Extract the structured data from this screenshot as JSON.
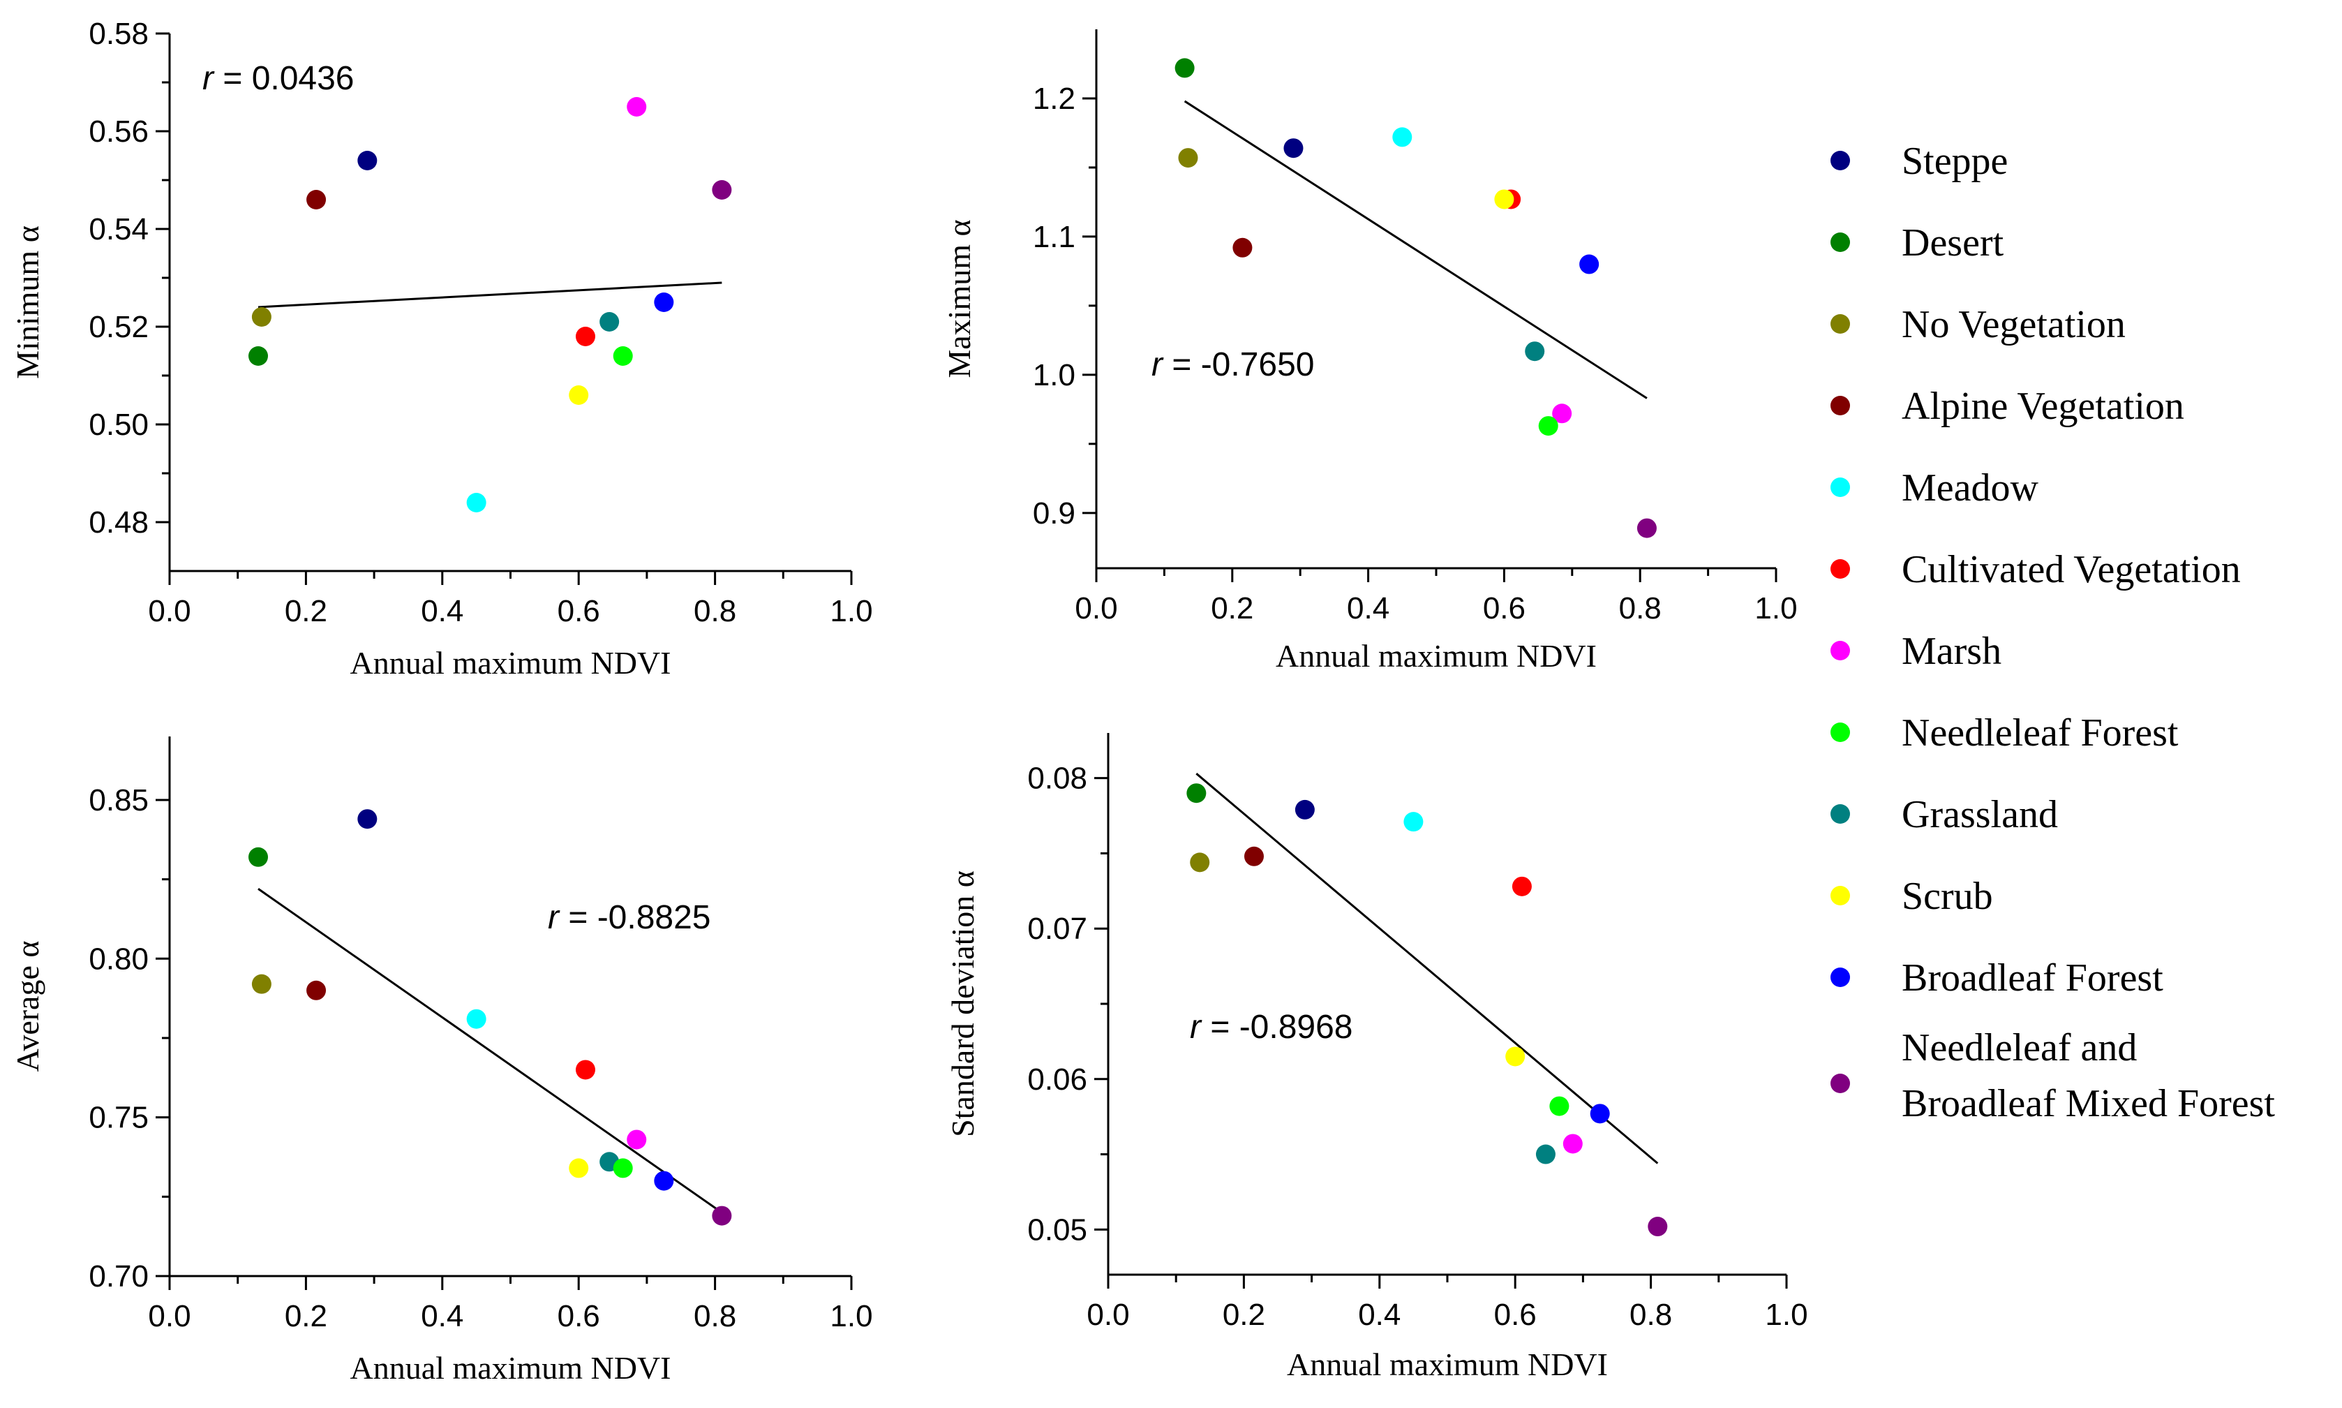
{
  "colors": {
    "Steppe": "#000080",
    "Desert": "#008000",
    "No Vegetation": "#808000",
    "Alpine Vegetation": "#800000",
    "Meadow": "#00ffff",
    "Cultivated Vegetation": "#ff0000",
    "Marsh": "#ff00ff",
    "Needleleaf Forest": "#00ff00",
    "Grassland": "#008080",
    "Scrub": "#ffff00",
    "Broadleaf Forest": "#0000ff",
    "Needleleaf and Broadleaf Mixed Forest": "#800080"
  },
  "legend": {
    "items": [
      {
        "key": "Steppe",
        "lines": [
          "Steppe"
        ]
      },
      {
        "key": "Desert",
        "lines": [
          "Desert"
        ]
      },
      {
        "key": "No Vegetation",
        "lines": [
          "No Vegetation"
        ]
      },
      {
        "key": "Alpine Vegetation",
        "lines": [
          "Alpine Vegetation"
        ]
      },
      {
        "key": "Meadow",
        "lines": [
          "Meadow"
        ]
      },
      {
        "key": "Cultivated Vegetation",
        "lines": [
          "Cultivated Vegetation"
        ]
      },
      {
        "key": "Marsh",
        "lines": [
          "Marsh"
        ]
      },
      {
        "key": "Needleleaf Forest",
        "lines": [
          "Needleleaf Forest"
        ]
      },
      {
        "key": "Grassland",
        "lines": [
          "Grassland"
        ]
      },
      {
        "key": "Scrub",
        "lines": [
          "Scrub"
        ]
      },
      {
        "key": "Broadleaf Forest",
        "lines": [
          "Broadleaf Forest"
        ]
      },
      {
        "key": "Needleleaf and Broadleaf Mixed Forest",
        "lines": [
          "Needleleaf and",
          "Broadleaf Mixed Forest"
        ]
      }
    ]
  },
  "chart_data": [
    {
      "type": "scatter",
      "xlabel": "Annual maximum NDVI",
      "ylabel": "Minimum α",
      "xlim": [
        0,
        1.0
      ],
      "ylim": [
        0.47,
        0.58
      ],
      "xticks": [
        0.0,
        0.2,
        0.4,
        0.6,
        0.8,
        1.0
      ],
      "yticks": [
        0.48,
        0.5,
        0.52,
        0.54,
        0.56,
        0.58
      ],
      "ytick_decimals": 2,
      "r_prefix": "r",
      "r_value": " = 0.0436",
      "points": [
        {
          "class": "Steppe",
          "x": 0.29,
          "y": 0.554
        },
        {
          "class": "Desert",
          "x": 0.13,
          "y": 0.514
        },
        {
          "class": "No Vegetation",
          "x": 0.135,
          "y": 0.522
        },
        {
          "class": "Alpine Vegetation",
          "x": 0.215,
          "y": 0.546
        },
        {
          "class": "Meadow",
          "x": 0.45,
          "y": 0.484
        },
        {
          "class": "Cultivated Vegetation",
          "x": 0.61,
          "y": 0.518
        },
        {
          "class": "Marsh",
          "x": 0.685,
          "y": 0.565
        },
        {
          "class": "Needleleaf Forest",
          "x": 0.665,
          "y": 0.514
        },
        {
          "class": "Grassland",
          "x": 0.645,
          "y": 0.521
        },
        {
          "class": "Scrub",
          "x": 0.6,
          "y": 0.506
        },
        {
          "class": "Broadleaf Forest",
          "x": 0.725,
          "y": 0.525
        },
        {
          "class": "Needleleaf and Broadleaf Mixed Forest",
          "x": 0.81,
          "y": 0.548
        }
      ],
      "fit": {
        "x": [
          0.13,
          0.81
        ],
        "y": [
          0.524,
          0.529
        ]
      }
    },
    {
      "type": "scatter",
      "xlabel": "Annual maximum NDVI",
      "ylabel": "Maximum α",
      "xlim": [
        0,
        1.0
      ],
      "ylim": [
        0.86,
        1.25
      ],
      "xticks": [
        0.0,
        0.2,
        0.4,
        0.6,
        0.8,
        1.0
      ],
      "yticks": [
        0.9,
        1.0,
        1.1,
        1.2
      ],
      "ytick_decimals": 1,
      "r_prefix": "r",
      "r_value": " = -0.7650",
      "points": [
        {
          "class": "Steppe",
          "x": 0.29,
          "y": 1.164
        },
        {
          "class": "Desert",
          "x": 0.13,
          "y": 1.222
        },
        {
          "class": "No Vegetation",
          "x": 0.135,
          "y": 1.157
        },
        {
          "class": "Alpine Vegetation",
          "x": 0.215,
          "y": 1.092
        },
        {
          "class": "Meadow",
          "x": 0.45,
          "y": 1.172
        },
        {
          "class": "Cultivated Vegetation",
          "x": 0.61,
          "y": 1.127
        },
        {
          "class": "Scrub",
          "x": 0.6,
          "y": 1.127
        },
        {
          "class": "Broadleaf Forest",
          "x": 0.725,
          "y": 1.08
        },
        {
          "class": "Grassland",
          "x": 0.645,
          "y": 1.017
        },
        {
          "class": "Marsh",
          "x": 0.685,
          "y": 0.972
        },
        {
          "class": "Needleleaf Forest",
          "x": 0.665,
          "y": 0.963
        },
        {
          "class": "Needleleaf and Broadleaf Mixed Forest",
          "x": 0.81,
          "y": 0.889
        }
      ],
      "fit": {
        "x": [
          0.13,
          0.81
        ],
        "y": [
          1.198,
          0.983
        ]
      }
    },
    {
      "type": "scatter",
      "xlabel": "Annual maximum NDVI",
      "ylabel": "Average α",
      "xlim": [
        0,
        1.0
      ],
      "ylim": [
        0.7,
        0.87
      ],
      "xticks": [
        0.0,
        0.2,
        0.4,
        0.6,
        0.8,
        1.0
      ],
      "yticks": [
        0.7,
        0.75,
        0.8,
        0.85
      ],
      "ytick_decimals": 2,
      "r_prefix": "r",
      "r_value": " = -0.8825",
      "points": [
        {
          "class": "Steppe",
          "x": 0.29,
          "y": 0.844
        },
        {
          "class": "Desert",
          "x": 0.13,
          "y": 0.832
        },
        {
          "class": "No Vegetation",
          "x": 0.135,
          "y": 0.792
        },
        {
          "class": "Alpine Vegetation",
          "x": 0.215,
          "y": 0.79
        },
        {
          "class": "Meadow",
          "x": 0.45,
          "y": 0.781
        },
        {
          "class": "Cultivated Vegetation",
          "x": 0.61,
          "y": 0.765
        },
        {
          "class": "Marsh",
          "x": 0.685,
          "y": 0.743
        },
        {
          "class": "Grassland",
          "x": 0.645,
          "y": 0.736
        },
        {
          "class": "Needleleaf Forest",
          "x": 0.665,
          "y": 0.734
        },
        {
          "class": "Scrub",
          "x": 0.6,
          "y": 0.734
        },
        {
          "class": "Broadleaf Forest",
          "x": 0.725,
          "y": 0.73
        },
        {
          "class": "Needleleaf and Broadleaf Mixed Forest",
          "x": 0.81,
          "y": 0.719
        }
      ],
      "fit": {
        "x": [
          0.13,
          0.81
        ],
        "y": [
          0.822,
          0.72
        ]
      }
    },
    {
      "type": "scatter",
      "xlabel": "Annual maximum NDVI",
      "ylabel": "Standard deviation α",
      "xlim": [
        0,
        1.0
      ],
      "ylim": [
        0.047,
        0.083
      ],
      "xticks": [
        0.0,
        0.2,
        0.4,
        0.6,
        0.8,
        1.0
      ],
      "yticks": [
        0.05,
        0.06,
        0.07,
        0.08
      ],
      "ytick_decimals": 2,
      "r_prefix": "r",
      "r_value": " = -0.8968",
      "points": [
        {
          "class": "Steppe",
          "x": 0.29,
          "y": 0.0779
        },
        {
          "class": "Desert",
          "x": 0.13,
          "y": 0.079
        },
        {
          "class": "No Vegetation",
          "x": 0.135,
          "y": 0.0744
        },
        {
          "class": "Alpine Vegetation",
          "x": 0.215,
          "y": 0.0748
        },
        {
          "class": "Meadow",
          "x": 0.45,
          "y": 0.0771
        },
        {
          "class": "Cultivated Vegetation",
          "x": 0.61,
          "y": 0.0728
        },
        {
          "class": "Scrub",
          "x": 0.6,
          "y": 0.0615
        },
        {
          "class": "Needleleaf Forest",
          "x": 0.665,
          "y": 0.0582
        },
        {
          "class": "Broadleaf Forest",
          "x": 0.725,
          "y": 0.0577
        },
        {
          "class": "Marsh",
          "x": 0.685,
          "y": 0.0557
        },
        {
          "class": "Grassland",
          "x": 0.645,
          "y": 0.055
        },
        {
          "class": "Needleleaf and Broadleaf Mixed Forest",
          "x": 0.81,
          "y": 0.0502
        }
      ],
      "fit": {
        "x": [
          0.13,
          0.81
        ],
        "y": [
          0.0803,
          0.0544
        ]
      }
    }
  ]
}
